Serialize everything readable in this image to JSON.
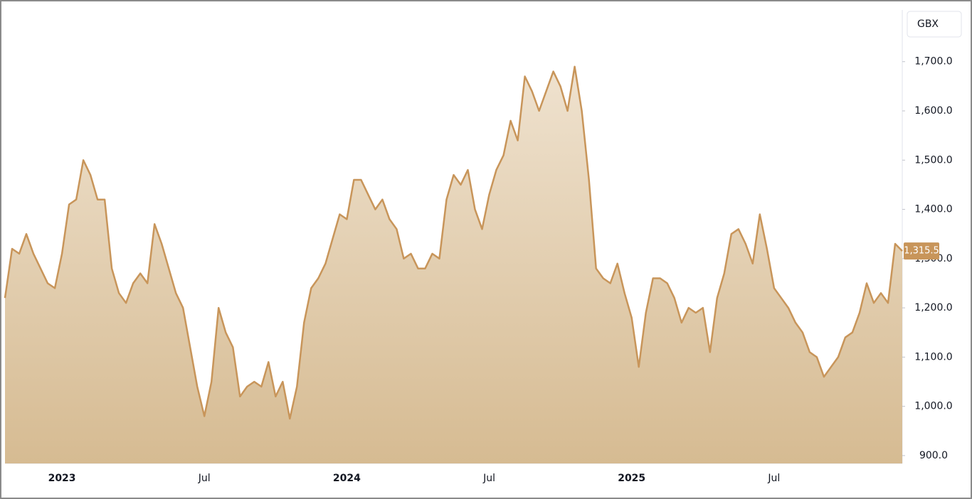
{
  "chart_data": {
    "type": "area",
    "currency": "GBX",
    "categories": [
      null,
      null,
      null,
      null,
      null,
      null,
      null,
      null,
      "2023",
      null,
      null,
      null,
      null,
      null,
      null,
      null,
      null,
      null,
      null,
      null,
      null,
      null,
      null,
      null,
      null,
      null,
      null,
      null,
      "Jul",
      null,
      null,
      null,
      null,
      null,
      null,
      null,
      null,
      null,
      null,
      null,
      null,
      null,
      null,
      null,
      null,
      null,
      null,
      null,
      "2024",
      null,
      null,
      null,
      null,
      null,
      null,
      null,
      null,
      null,
      null,
      null,
      null,
      null,
      null,
      null,
      null,
      null,
      null,
      null,
      "Jul",
      null,
      null,
      null,
      null,
      null,
      null,
      null,
      null,
      null,
      null,
      null,
      null,
      null,
      null,
      null,
      null,
      null,
      null,
      null,
      "2025",
      null,
      null,
      null,
      null,
      null,
      null,
      null,
      null,
      null,
      null,
      null,
      null,
      null,
      null,
      null,
      null,
      null,
      null,
      null,
      "Jul",
      null,
      null,
      null,
      null,
      null,
      null,
      null,
      null,
      null,
      null,
      null,
      null,
      null,
      null,
      null,
      null,
      null,
      null
    ],
    "values": [
      1220,
      1320,
      1310,
      1350,
      1310,
      1280,
      1250,
      1240,
      1310,
      1410,
      1420,
      1500,
      1470,
      1420,
      1420,
      1280,
      1230,
      1210,
      1250,
      1270,
      1250,
      1370,
      1330,
      1280,
      1230,
      1200,
      1120,
      1040,
      980,
      1050,
      1200,
      1150,
      1120,
      1020,
      1040,
      1050,
      1040,
      1090,
      1020,
      1050,
      975,
      1040,
      1170,
      1240,
      1260,
      1290,
      1340,
      1390,
      1380,
      1460,
      1460,
      1430,
      1400,
      1420,
      1380,
      1360,
      1300,
      1310,
      1280,
      1280,
      1310,
      1300,
      1420,
      1470,
      1450,
      1480,
      1400,
      1360,
      1430,
      1480,
      1510,
      1580,
      1540,
      1670,
      1640,
      1600,
      1640,
      1680,
      1650,
      1600,
      1690,
      1600,
      1460,
      1280,
      1260,
      1250,
      1290,
      1230,
      1180,
      1080,
      1190,
      1260,
      1260,
      1250,
      1220,
      1170,
      1200,
      1190,
      1200,
      1110,
      1220,
      1270,
      1350,
      1360,
      1330,
      1290,
      1390,
      1320,
      1240,
      1220,
      1200,
      1170,
      1150,
      1110,
      1100,
      1060,
      1080,
      1100,
      1140,
      1150,
      1190,
      1250,
      1210,
      1230,
      1210,
      1330,
      1315.5
    ],
    "last_price": {
      "value": 1315.5,
      "label": "1,315.5"
    },
    "color": "#c8955a",
    "ylim": [
      884,
      1805
    ],
    "yticks": [
      {
        "value": 900,
        "label": "900.0"
      },
      {
        "value": 1000,
        "label": "1,000.0"
      },
      {
        "value": 1100,
        "label": "1,100.0"
      },
      {
        "value": 1200,
        "label": "1,200.0"
      },
      {
        "value": 1300,
        "label": "1,300.0"
      },
      {
        "value": 1400,
        "label": "1,400.0"
      },
      {
        "value": 1500,
        "label": "1,500.0"
      },
      {
        "value": 1600,
        "label": "1,600.0"
      },
      {
        "value": 1700,
        "label": "1,700.0"
      }
    ]
  }
}
